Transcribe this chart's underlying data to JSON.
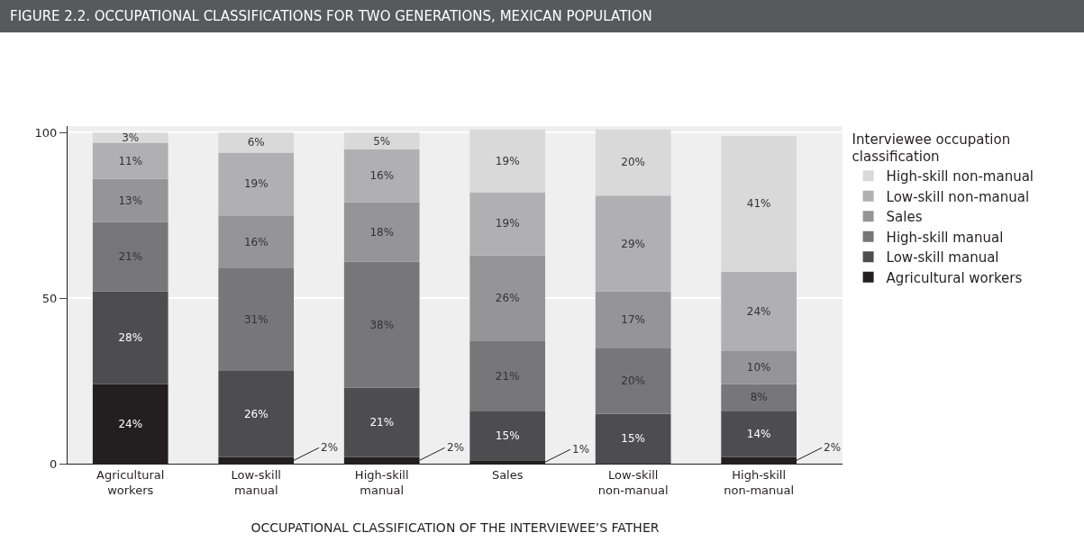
{
  "chart_data": {
    "type": "bar",
    "stacked": true,
    "title": "FIGURE 2.2. OCCUPATIONAL CLASSIFICATIONS FOR TWO GENERATIONS, MEXICAN POPULATION",
    "xlabel": "OCCUPATIONAL CLASSIFICATION OF THE INTERVIEWEE’S FATHER",
    "legend_title": "Interviewee occupation classification",
    "categories": [
      "Agricultural workers",
      "Low-skill manual",
      "High-skill manual",
      "Sales",
      "Low-skill non-manual",
      "High-skill non-manual"
    ],
    "series": [
      {
        "name": "Agricultural workers",
        "color": "#231f20",
        "values": [
          24,
          2,
          2,
          1,
          0,
          2
        ],
        "value_labels": [
          "24%",
          "2%",
          "2%",
          "1%",
          null,
          "2%"
        ]
      },
      {
        "name": "Low-skill manual",
        "color": "#4d4d4f",
        "values": [
          28,
          26,
          21,
          15,
          15,
          14
        ],
        "value_labels": [
          "28%",
          "26%",
          "21%",
          "15%",
          "15%",
          "14%"
        ]
      },
      {
        "name": "High-skill manual",
        "color": "#77777a",
        "values": [
          21,
          31,
          38,
          21,
          20,
          8
        ],
        "value_labels": [
          "21%",
          "31%",
          "38%",
          "21%",
          "20%",
          "8%"
        ]
      },
      {
        "name": "Sales",
        "color": "#959597",
        "values": [
          13,
          16,
          18,
          26,
          17,
          10
        ],
        "value_labels": [
          "13%",
          "16%",
          "18%",
          "26%",
          "17%",
          "10%"
        ]
      },
      {
        "name": "Low-skill non-manual",
        "color": "#b0b0b2",
        "values": [
          11,
          19,
          16,
          19,
          29,
          24
        ],
        "value_labels": [
          "11%",
          "19%",
          "16%",
          "19%",
          "29%",
          "24%"
        ]
      },
      {
        "name": "High-skill non-manual",
        "color": "#d9d9da",
        "values": [
          3,
          6,
          5,
          19,
          20,
          41
        ],
        "value_labels": [
          "3%",
          "6%",
          "5%",
          "19%",
          "20%",
          "41%"
        ]
      }
    ],
    "ylim": [
      0,
      102
    ],
    "yticks": [
      0,
      50,
      100
    ],
    "grid": "y",
    "legend": "top right"
  }
}
